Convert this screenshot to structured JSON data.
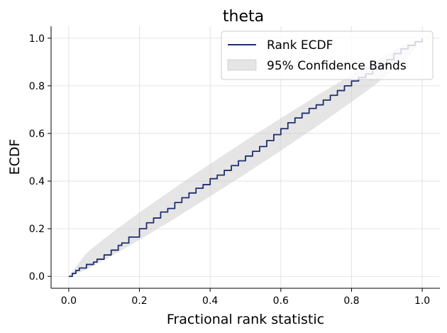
{
  "chart_data": {
    "type": "line",
    "title": "theta",
    "xlabel": "Fractional rank statistic",
    "ylabel": "ECDF",
    "xlim": [
      -0.05,
      1.05
    ],
    "ylim": [
      -0.05,
      1.05
    ],
    "xticks": [
      0.0,
      0.2,
      0.4,
      0.6,
      0.8,
      1.0
    ],
    "xtick_labels": [
      "0.0",
      "0.2",
      "0.4",
      "0.6",
      "0.8",
      "1.0"
    ],
    "yticks": [
      0.0,
      0.2,
      0.4,
      0.6,
      0.8,
      1.0
    ],
    "ytick_labels": [
      "0.0",
      "0.2",
      "0.4",
      "0.6",
      "0.8",
      "1.0"
    ],
    "grid": true,
    "legend_position": "top-right",
    "series": [
      {
        "name": "Rank ECDF",
        "kind": "line",
        "color": "#1f2e6e",
        "x": [
          0.0,
          0.01,
          0.02,
          0.03,
          0.05,
          0.07,
          0.08,
          0.1,
          0.12,
          0.14,
          0.15,
          0.17,
          0.2,
          0.22,
          0.24,
          0.26,
          0.28,
          0.3,
          0.32,
          0.34,
          0.36,
          0.38,
          0.4,
          0.42,
          0.44,
          0.46,
          0.48,
          0.5,
          0.52,
          0.54,
          0.56,
          0.58,
          0.6,
          0.62,
          0.64,
          0.66,
          0.68,
          0.7,
          0.72,
          0.74,
          0.76,
          0.78,
          0.8,
          0.82,
          0.84,
          0.86,
          0.88,
          0.9,
          0.92,
          0.94,
          0.96,
          0.98,
          1.0
        ],
        "y": [
          0.0,
          0.012,
          0.025,
          0.035,
          0.05,
          0.06,
          0.072,
          0.09,
          0.11,
          0.13,
          0.14,
          0.165,
          0.2,
          0.225,
          0.245,
          0.27,
          0.285,
          0.31,
          0.33,
          0.35,
          0.37,
          0.385,
          0.41,
          0.425,
          0.445,
          0.465,
          0.485,
          0.505,
          0.525,
          0.545,
          0.57,
          0.595,
          0.62,
          0.645,
          0.665,
          0.685,
          0.705,
          0.72,
          0.74,
          0.76,
          0.78,
          0.8,
          0.82,
          0.835,
          0.85,
          0.87,
          0.89,
          0.91,
          0.935,
          0.955,
          0.97,
          0.985,
          1.0
        ]
      },
      {
        "name": "95% Confidence Bands",
        "kind": "band",
        "color": "#cccccc",
        "x": [
          0.0,
          0.05,
          0.1,
          0.15,
          0.2,
          0.25,
          0.3,
          0.35,
          0.4,
          0.45,
          0.5,
          0.55,
          0.6,
          0.65,
          0.7,
          0.75,
          0.8,
          0.85,
          0.9,
          0.95,
          1.0
        ],
        "lower": [
          0.0,
          0.028,
          0.068,
          0.11,
          0.153,
          0.198,
          0.243,
          0.29,
          0.336,
          0.383,
          0.43,
          0.479,
          0.528,
          0.578,
          0.628,
          0.68,
          0.732,
          0.786,
          0.842,
          0.902,
          1.0
        ],
        "upper": [
          0.0,
          0.098,
          0.158,
          0.214,
          0.268,
          0.32,
          0.372,
          0.422,
          0.472,
          0.521,
          0.57,
          0.617,
          0.664,
          0.71,
          0.757,
          0.802,
          0.847,
          0.89,
          0.932,
          0.972,
          1.0
        ]
      }
    ]
  }
}
